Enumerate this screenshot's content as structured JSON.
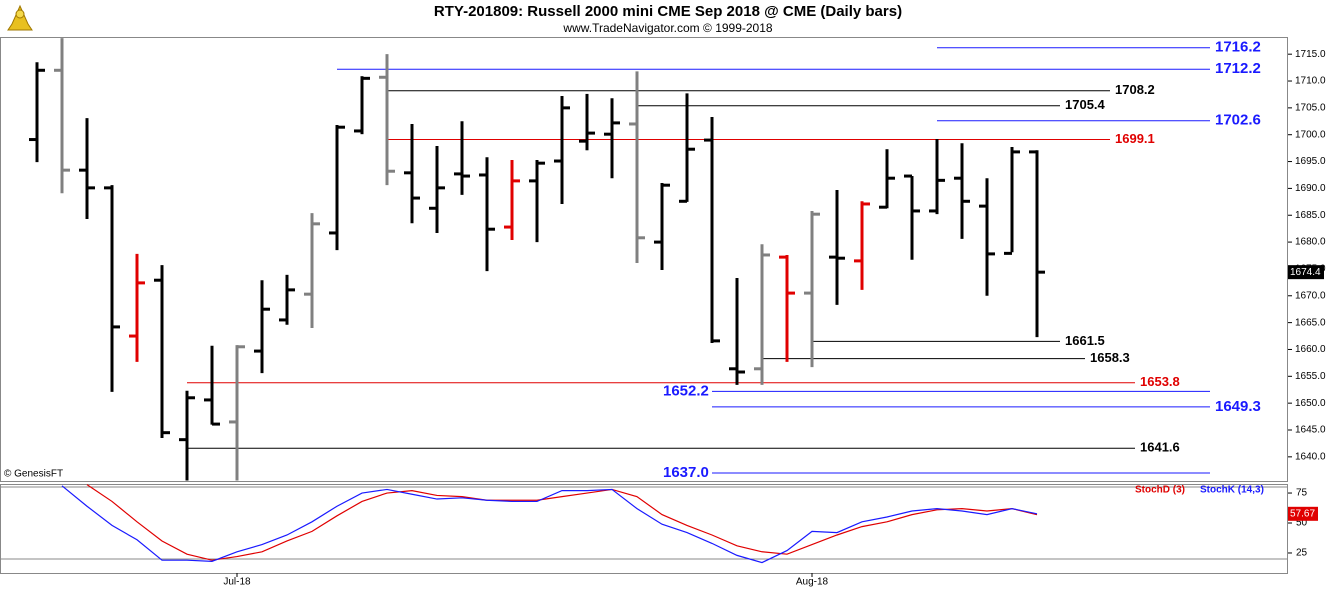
{
  "chart_data": [
    {
      "type": "ohlc",
      "title": "RTY-201809:  Russell 2000 mini CME Sep 2018 @ CME  (Daily bars)",
      "subtitle": "www.TradeNavigator.com © 1999-2018",
      "watermark": "© GenesisFT",
      "categories": [
        null,
        null,
        null,
        null,
        null,
        null,
        null,
        null,
        "Jul-18",
        null,
        null,
        null,
        null,
        null,
        null,
        null,
        null,
        null,
        null,
        null,
        null,
        null,
        null,
        null,
        null,
        null,
        null,
        null,
        null,
        null,
        null,
        "Aug-18",
        null,
        null,
        null,
        null,
        null,
        null,
        null,
        null,
        null
      ],
      "open": [
        1699.1,
        1712.0,
        1693.4,
        1690.1,
        1662.5,
        1672.9,
        1643.2,
        1650.6,
        1646.5,
        1659.7,
        1665.5,
        1670.3,
        1681.7,
        1700.7,
        1710.7,
        1692.9,
        1686.3,
        1692.7,
        1692.5,
        1682.8,
        1691.4,
        1695.1,
        1698.8,
        1700.1,
        1702.0,
        1680.0,
        1687.6,
        1699.0,
        1656.4,
        1656.4,
        1677.2,
        1670.5,
        1677.2,
        1676.5,
        1686.5,
        1692.3,
        1685.8,
        1691.9,
        1686.7,
        1677.9,
        1696.8
      ],
      "high": [
        1713.5,
        1718.0,
        1703.1,
        1690.6,
        1677.8,
        1675.7,
        1652.3,
        1660.7,
        1660.8,
        1672.9,
        1673.9,
        1685.4,
        1701.8,
        1710.9,
        1715.0,
        1702.0,
        1697.9,
        1702.5,
        1695.8,
        1695.3,
        1695.3,
        1707.2,
        1707.6,
        1706.8,
        1711.8,
        1691.0,
        1707.7,
        1703.3,
        1673.3,
        1679.6,
        1677.6,
        1685.8,
        1689.7,
        1687.6,
        1697.3,
        1692.3,
        1699.2,
        1698.4,
        1691.9,
        1697.7,
        1697.1
      ],
      "low": [
        1694.9,
        1689.1,
        1684.3,
        1652.1,
        1657.7,
        1643.5,
        1635.6,
        1646.0,
        1635.6,
        1655.6,
        1664.6,
        1664.0,
        1678.5,
        1700.1,
        1690.6,
        1683.5,
        1681.7,
        1688.8,
        1674.6,
        1680.4,
        1680.0,
        1687.1,
        1697.1,
        1691.9,
        1676.1,
        1674.8,
        1687.5,
        1661.2,
        1653.4,
        1653.4,
        1657.7,
        1656.7,
        1668.3,
        1671.1,
        1686.3,
        1676.7,
        1685.2,
        1680.6,
        1670.0,
        1678.1,
        1662.3
      ],
      "close": [
        1712.0,
        1693.4,
        1690.1,
        1664.2,
        1672.4,
        1644.5,
        1651.0,
        1646.1,
        1660.5,
        1667.5,
        1671.1,
        1683.4,
        1701.4,
        1710.5,
        1693.2,
        1688.2,
        1690.1,
        1692.3,
        1682.4,
        1691.4,
        1694.7,
        1705.0,
        1700.3,
        1702.2,
        1680.8,
        1690.6,
        1697.3,
        1661.6,
        1655.8,
        1677.6,
        1670.5,
        1685.2,
        1677.0,
        1687.1,
        1691.9,
        1685.8,
        1691.5,
        1687.6,
        1677.8,
        1696.8,
        1674.4
      ],
      "bar_colors": [
        "#000000",
        "#808080",
        "#000000",
        "#000000",
        "#e00000",
        "#000000",
        "#000000",
        "#000000",
        "#808080",
        "#000000",
        "#000000",
        "#808080",
        "#000000",
        "#000000",
        "#808080",
        "#000000",
        "#000000",
        "#000000",
        "#000000",
        "#e00000",
        "#000000",
        "#000000",
        "#000000",
        "#000000",
        "#808080",
        "#000000",
        "#000000",
        "#000000",
        "#000000",
        "#808080",
        "#e00000",
        "#808080",
        "#000000",
        "#e00000",
        "#000000",
        "#000000",
        "#000000",
        "#000000",
        "#000000",
        "#000000",
        "#000000"
      ],
      "ylim": [
        1635.5,
        1718.2
      ],
      "yticks": [
        {
          "value": 1640,
          "label": "1640.0"
        },
        {
          "value": 1645,
          "label": "1645.0"
        },
        {
          "value": 1650,
          "label": "1650.0"
        },
        {
          "value": 1655,
          "label": "1655.0"
        },
        {
          "value": 1660,
          "label": "1660.0"
        },
        {
          "value": 1665,
          "label": "1665.0"
        },
        {
          "value": 1670,
          "label": "1670.0"
        },
        {
          "value": 1675,
          "label": "1675.0"
        },
        {
          "value": 1680,
          "label": "1680.0"
        },
        {
          "value": 1685,
          "label": "1685.0"
        },
        {
          "value": 1690,
          "label": "1690.0"
        },
        {
          "value": 1695,
          "label": "1695.0"
        },
        {
          "value": 1700,
          "label": "1700.0"
        },
        {
          "value": 1705,
          "label": "1705.0"
        },
        {
          "value": 1710,
          "label": "1710.0"
        },
        {
          "value": 1715,
          "label": "1715.0"
        }
      ],
      "levels": [
        {
          "value": 1716.2,
          "color": "#1a1aff"
        },
        {
          "value": 1712.2,
          "color": "#1a1aff"
        },
        {
          "value": 1708.2,
          "color": "#000000"
        },
        {
          "value": 1705.4,
          "color": "#000000"
        },
        {
          "value": 1702.6,
          "color": "#1a1aff"
        },
        {
          "value": 1699.1,
          "color": "#e00000"
        },
        {
          "value": 1661.5,
          "color": "#000000"
        },
        {
          "value": 1658.3,
          "color": "#000000"
        },
        {
          "value": 1653.8,
          "color": "#e00000"
        },
        {
          "value": 1652.2,
          "color": "#1a1aff"
        },
        {
          "value": 1649.3,
          "color": "#1a1aff"
        },
        {
          "value": 1641.6,
          "color": "#000000"
        },
        {
          "value": 1637,
          "label": "1637.0",
          "color": "#1a1aff"
        }
      ]
    },
    {
      "type": "line",
      "series": [
        {
          "name": "StochD (3)",
          "color": "#e00000",
          "values": [
            null,
            null,
            82,
            68,
            51,
            35,
            24,
            19,
            22,
            26,
            35,
            43,
            56,
            68,
            75,
            77,
            73,
            72,
            69,
            69,
            69,
            72,
            75,
            78,
            72,
            57,
            48,
            40,
            31,
            26,
            24,
            32,
            40,
            47,
            51,
            57,
            61,
            62,
            60,
            62,
            57
          ]
        },
        {
          "name": "StochK (14,3)",
          "color": "#1a1aff",
          "values": [
            null,
            81,
            64,
            48,
            36,
            19,
            19,
            18,
            26,
            32,
            40,
            51,
            64,
            75,
            78,
            74,
            70,
            71,
            69,
            68,
            68,
            77,
            77,
            78,
            62,
            49,
            42,
            33,
            23,
            17,
            27,
            43,
            42,
            51,
            55,
            60,
            62,
            60,
            57,
            62,
            57.67
          ]
        }
      ],
      "levels": [
        20,
        80
      ],
      "ylim": [
        8.3,
        81.7
      ],
      "yticks": [
        25,
        50,
        75
      ]
    }
  ]
}
